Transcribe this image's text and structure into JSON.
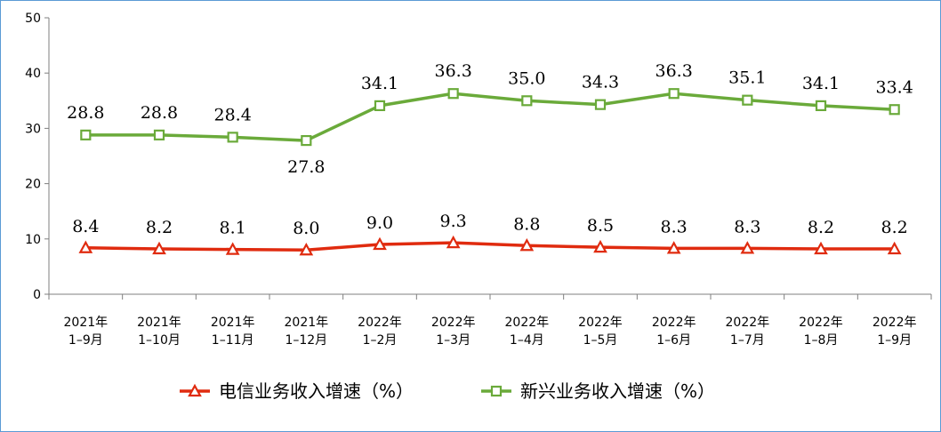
{
  "chart_data": {
    "type": "line",
    "title": "",
    "xlabel": "",
    "ylabel": "",
    "ylim": [
      0,
      50
    ],
    "yticks": [
      "0",
      "10",
      "20",
      "30",
      "40",
      "50"
    ],
    "categories": [
      [
        "2021年",
        "1–9月"
      ],
      [
        "2021年",
        "1–10月"
      ],
      [
        "2021年",
        "1–11月"
      ],
      [
        "2021年",
        "1–12月"
      ],
      [
        "2022年",
        "1–2月"
      ],
      [
        "2022年",
        "1–3月"
      ],
      [
        "2022年",
        "1–4月"
      ],
      [
        "2022年",
        "1–5月"
      ],
      [
        "2022年",
        "1–6月"
      ],
      [
        "2022年",
        "1–7月"
      ],
      [
        "2022年",
        "1–8月"
      ],
      [
        "2022年",
        "1–9月"
      ]
    ],
    "grid": false,
    "legend_position": "bottom-center",
    "series": [
      {
        "name": "电信业务收入增速（%）",
        "color": "#e02b0f",
        "marker": "triangle",
        "values": [
          8.4,
          8.2,
          8.1,
          8.0,
          9.0,
          9.3,
          8.8,
          8.5,
          8.3,
          8.3,
          8.2,
          8.2
        ],
        "labels": [
          "8.4",
          "8.2",
          "8.1",
          "8.0",
          "9.0",
          "9.3",
          "8.8",
          "8.5",
          "8.3",
          "8.3",
          "8.2",
          "8.2"
        ]
      },
      {
        "name": "新兴业务收入增速（%）",
        "color": "#6aaa3a",
        "marker": "square",
        "values": [
          28.8,
          28.8,
          28.4,
          27.8,
          34.1,
          36.3,
          35.0,
          34.3,
          36.3,
          35.1,
          34.1,
          33.4
        ],
        "labels": [
          "28.8",
          "28.8",
          "28.4",
          "27.8",
          "34.1",
          "36.3",
          "35.0",
          "34.3",
          "36.3",
          "35.1",
          "34.1",
          "33.4"
        ]
      }
    ]
  }
}
